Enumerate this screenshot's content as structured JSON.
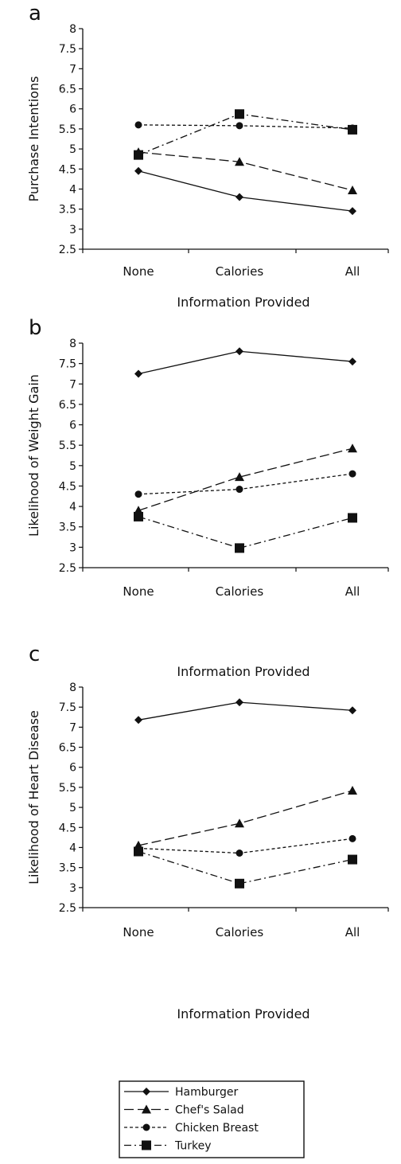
{
  "chart_data": [
    {
      "type": "line",
      "panel_label": "a",
      "ylabel": "Purchase Intentions",
      "xlabel": "Information Provided",
      "categories": [
        "None",
        "Calories",
        "All"
      ],
      "ylim": [
        2.5,
        8
      ],
      "yticks": [
        "2.5",
        "3",
        "3.5",
        "4",
        "4.5",
        "5",
        "5.5",
        "6",
        "6.5",
        "7",
        "7.5",
        "8"
      ],
      "series": [
        {
          "name": "Hamburger",
          "values": [
            4.45,
            3.8,
            3.45
          ]
        },
        {
          "name": "Chef's Salad",
          "values": [
            4.92,
            4.68,
            3.97
          ]
        },
        {
          "name": "Chicken Breast",
          "values": [
            5.6,
            5.58,
            5.52
          ]
        },
        {
          "name": "Turkey",
          "values": [
            4.85,
            5.87,
            5.48
          ]
        }
      ]
    },
    {
      "type": "line",
      "panel_label": "b",
      "ylabel": "Likelihood of Weight Gain",
      "xlabel": "Information Provided",
      "categories": [
        "None",
        "Calories",
        "All"
      ],
      "ylim": [
        2.5,
        8
      ],
      "yticks": [
        "2.5",
        "3",
        "3.5",
        "4",
        "4.5",
        "5",
        "5.5",
        "6",
        "6.5",
        "7",
        "7.5",
        "8"
      ],
      "series": [
        {
          "name": "Hamburger",
          "values": [
            7.25,
            7.8,
            7.55
          ]
        },
        {
          "name": "Chef's Salad",
          "values": [
            3.9,
            4.72,
            5.42
          ]
        },
        {
          "name": "Chicken Breast",
          "values": [
            4.3,
            4.42,
            4.8
          ]
        },
        {
          "name": "Turkey",
          "values": [
            3.75,
            2.98,
            3.72
          ]
        }
      ]
    },
    {
      "type": "line",
      "panel_label": "c",
      "ylabel": "Likelihood of Heart Disease",
      "xlabel": "Information Provided",
      "categories": [
        "None",
        "Calories",
        "All"
      ],
      "ylim": [
        2.5,
        8
      ],
      "yticks": [
        "2.5",
        "3",
        "3.5",
        "4",
        "4.5",
        "5",
        "5.5",
        "6",
        "6.5",
        "7",
        "7.5",
        "8"
      ],
      "series": [
        {
          "name": "Hamburger",
          "values": [
            7.18,
            7.62,
            7.42
          ]
        },
        {
          "name": "Chef's Salad",
          "values": [
            4.05,
            4.6,
            5.42
          ]
        },
        {
          "name": "Chicken Breast",
          "values": [
            3.98,
            3.86,
            4.22
          ]
        },
        {
          "name": "Turkey",
          "values": [
            3.9,
            3.1,
            3.7
          ]
        }
      ]
    }
  ],
  "legend": {
    "placement": "bottom",
    "items": [
      "Hamburger",
      "Chef's Salad",
      "Chicken Breast",
      "Turkey"
    ]
  }
}
